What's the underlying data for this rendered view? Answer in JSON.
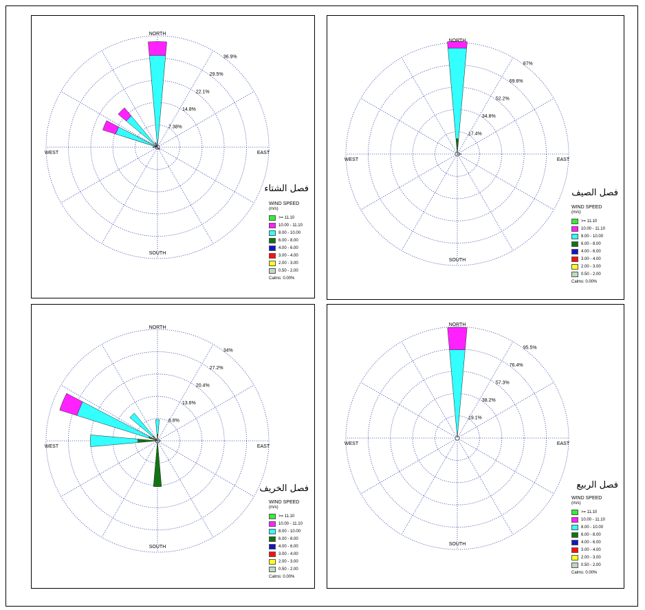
{
  "legend": {
    "title": "WIND SPEED",
    "unit": "(m/s)",
    "calms": "Calms: 0.00%",
    "classes": [
      {
        "label": ">= 11.10",
        "color": "#33ee33"
      },
      {
        "label": "10.00 - 11.10",
        "color": "#ff22ff"
      },
      {
        "label": "8.00 - 10.00",
        "color": "#33ffff"
      },
      {
        "label": "6.00 - 8.00",
        "color": "#137313"
      },
      {
        "label": "4.00 - 6.00",
        "color": "#1414c8"
      },
      {
        "label": "3.00 - 4.00",
        "color": "#ff1010"
      },
      {
        "label": "2.00 - 3.00",
        "color": "#ffff22"
      },
      {
        "label": "0.50 - 2.00",
        "color": "#bbdbbb"
      }
    ]
  },
  "directions": {
    "north": "NORTH",
    "south": "SOUTH",
    "east": "EAST",
    "west": "WEST"
  },
  "chart_data": [
    {
      "type": "wind-rose",
      "title": "فصل الشتاء",
      "rings": [
        7.38,
        14.8,
        22.1,
        29.5,
        36.9
      ],
      "ring_labels": [
        "7.38%",
        "14.8%",
        "22.1%",
        "29.5%",
        "36.9%"
      ],
      "petals": [
        {
          "direction_deg": 0,
          "segments": [
            {
              "class": "8.00 - 10.00",
              "value": 30.5
            },
            {
              "class": "10.00 - 11.10",
              "value": 4.5
            }
          ]
        },
        {
          "direction_deg": 292.5,
          "segments": [
            {
              "class": "8.00 - 10.00",
              "value": 8.2
            },
            {
              "class": "10.00 - 11.10",
              "value": 3.5
            }
          ]
        },
        {
          "direction_deg": 292.5,
          "offset": 0,
          "note": "",
          "segments": []
        },
        {
          "direction_deg": 270,
          "segments": [
            {
              "class": "8.00 - 10.00",
              "value": 0.8
            },
            {
              "class": "10.00 - 11.10",
              "value": 0.8
            }
          ]
        },
        {
          "direction_deg": 337.5,
          "segments": [
            {
              "class": "8.00 - 10.00",
              "value": 1.2
            },
            {
              "class": "10.00 - 11.10",
              "value": 0.5
            }
          ]
        },
        {
          "direction_deg": 135,
          "segments": [
            {
              "class": "6.00 - 8.00",
              "value": 0.5
            },
            {
              "class": "10.00 - 11.10",
              "value": 0.6
            }
          ]
        },
        {
          "direction_deg": 180,
          "segments": [
            {
              "class": "6.00 - 8.00",
              "value": 0.6
            }
          ]
        }
      ],
      "west_petal": {
        "direction_deg": 292.5,
        "segments": [
          {
            "class": "8.00 - 10.00",
            "value": 14.5
          },
          {
            "class": "10.00 - 11.10",
            "value": 4.5
          }
        ]
      },
      "nw_petal": {
        "direction_deg": 315,
        "segments": [
          {
            "class": "8.00 - 10.00",
            "value": 13.5
          },
          {
            "class": "10.00 - 11.10",
            "value": 3.5
          }
        ]
      }
    },
    {
      "type": "wind-rose",
      "title": "فصل الصيف",
      "rings": [
        17.4,
        34.8,
        52.2,
        69.6,
        87
      ],
      "ring_labels": [
        "17.4%",
        "34.8%",
        "52.2%",
        "69.6%",
        "87%"
      ],
      "petals": [
        {
          "direction_deg": 0,
          "segments": [
            {
              "class": "6.00 - 8.00",
              "value": 12
            },
            {
              "class": "8.00 - 10.00",
              "value": 71
            },
            {
              "class": "10.00 - 11.10",
              "value": 5
            }
          ]
        },
        {
          "direction_deg": 90,
          "segments": [
            {
              "class": "6.00 - 8.00",
              "value": 3
            }
          ]
        },
        {
          "direction_deg": 180,
          "segments": [
            {
              "class": "6.00 - 8.00",
              "value": 1
            }
          ]
        }
      ]
    },
    {
      "type": "wind-rose",
      "title": "فصل الخريف",
      "rings": [
        6.8,
        13.6,
        20.4,
        27.2,
        34
      ],
      "ring_labels": [
        "6.8%",
        "13.6%",
        "20.4%",
        "27.2%",
        "34%"
      ],
      "petals": [
        {
          "direction_deg": 292.5,
          "segments": [
            {
              "class": "6.00 - 8.00",
              "value": 2.8
            },
            {
              "class": "8.00 - 10.00",
              "value": 23
            },
            {
              "class": "10.00 - 11.10",
              "value": 5.5
            }
          ]
        },
        {
          "direction_deg": 270,
          "segments": [
            {
              "class": "6.00 - 8.00",
              "value": 6
            },
            {
              "class": "8.00 - 10.00",
              "value": 14.5
            }
          ]
        },
        {
          "direction_deg": 180,
          "segments": [
            {
              "class": "6.00 - 8.00",
              "value": 14
            }
          ]
        },
        {
          "direction_deg": 315,
          "segments": [
            {
              "class": "6.00 - 8.00",
              "value": 2
            },
            {
              "class": "8.00 - 10.00",
              "value": 9
            }
          ]
        },
        {
          "direction_deg": 0,
          "segments": [
            {
              "class": "6.00 - 8.00",
              "value": 2
            },
            {
              "class": "8.00 - 10.00",
              "value": 4.5
            }
          ]
        },
        {
          "direction_deg": 90,
          "segments": [
            {
              "class": "6.00 - 8.00",
              "value": 1
            }
          ]
        }
      ]
    },
    {
      "type": "wind-rose",
      "title": "فصل الربيع",
      "rings": [
        19.1,
        38.2,
        57.3,
        76.4,
        95.5
      ],
      "ring_labels": [
        "19.1%",
        "38.2%",
        "57.3%",
        "76.4%",
        "95.5%"
      ],
      "petals": [
        {
          "direction_deg": 0,
          "segments": [
            {
              "class": "8.00 - 10.00",
              "value": 76
            },
            {
              "class": "10.00 - 11.10",
              "value": 19
            }
          ]
        }
      ]
    }
  ]
}
